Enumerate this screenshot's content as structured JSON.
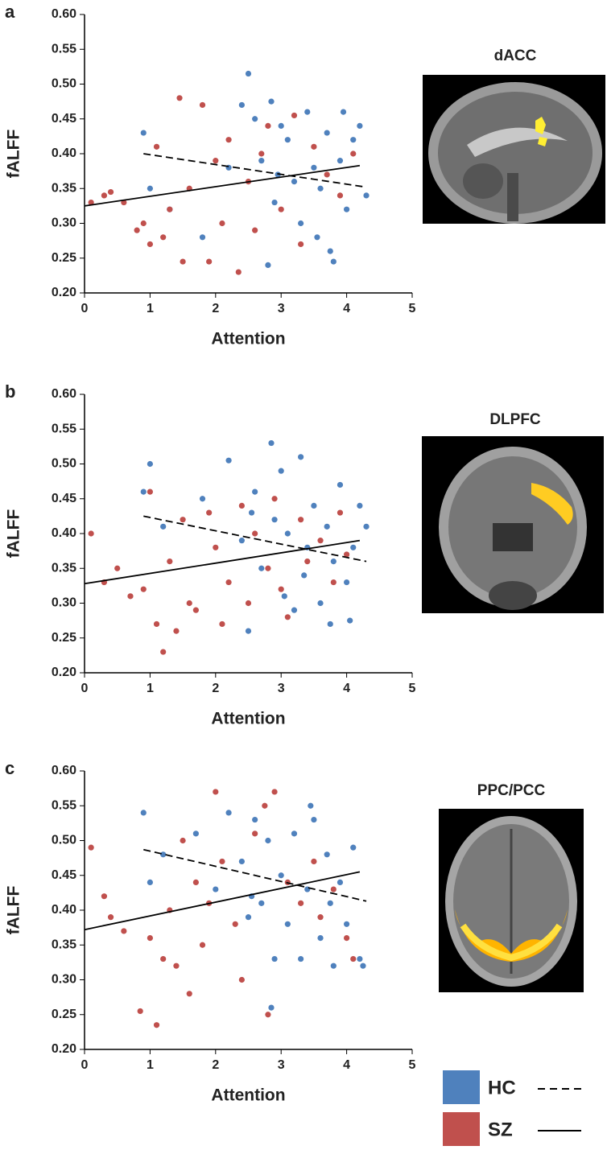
{
  "chart_data": [
    {
      "type": "scatter",
      "panel_label": "a",
      "title": "dACC",
      "xlabel": "Attention",
      "ylabel": "fALFF",
      "xlim": [
        0,
        5
      ],
      "ylim": [
        0.2,
        0.6
      ],
      "xticks": [
        0,
        1,
        2,
        3,
        4,
        5
      ],
      "yticks": [
        {
          "value": 0.2,
          "label": "0.20"
        },
        0.25,
        {
          "value": 0.3,
          "label": "0.30"
        },
        0.35,
        {
          "value": 0.4,
          "label": "0.40"
        },
        0.45,
        {
          "value": 0.5,
          "label": "0.50"
        },
        0.55,
        {
          "value": 0.6,
          "label": "0.60"
        }
      ],
      "series": [
        {
          "color": "#4f81bd",
          "line_style": "dashed",
          "x": [
            0.9,
            1.0,
            1.3,
            1.8,
            2.2,
            2.4,
            2.5,
            2.6,
            2.7,
            2.8,
            2.85,
            2.9,
            3.0,
            3.1,
            3.2,
            3.3,
            3.4,
            3.5,
            3.55,
            3.6,
            3.7,
            3.75,
            3.8,
            3.9,
            3.95,
            4.0,
            4.1,
            4.2,
            4.3,
            2.95
          ],
          "values": [
            0.43,
            0.35,
            0.32,
            0.28,
            0.38,
            0.47,
            0.515,
            0.45,
            0.39,
            0.24,
            0.475,
            0.33,
            0.44,
            0.42,
            0.36,
            0.3,
            0.46,
            0.38,
            0.28,
            0.35,
            0.43,
            0.26,
            0.245,
            0.39,
            0.46,
            0.32,
            0.42,
            0.44,
            0.34,
            0.37
          ],
          "fit_x": [
            0.9,
            4.3
          ],
          "fit_values": [
            0.4,
            0.352
          ]
        },
        {
          "color": "#c0504d",
          "line_style": "solid",
          "x": [
            0.1,
            0.3,
            0.4,
            0.6,
            0.8,
            0.9,
            1.0,
            1.1,
            1.2,
            1.3,
            1.45,
            1.5,
            1.6,
            1.8,
            1.9,
            2.0,
            2.1,
            2.2,
            2.35,
            2.5,
            2.6,
            2.7,
            2.8,
            3.0,
            3.2,
            3.3,
            3.5,
            3.7,
            3.9,
            4.1
          ],
          "values": [
            0.33,
            0.34,
            0.345,
            0.33,
            0.29,
            0.3,
            0.27,
            0.41,
            0.28,
            0.32,
            0.48,
            0.245,
            0.35,
            0.47,
            0.245,
            0.39,
            0.3,
            0.42,
            0.23,
            0.36,
            0.29,
            0.4,
            0.44,
            0.32,
            0.455,
            0.27,
            0.41,
            0.37,
            0.34,
            0.4
          ],
          "fit_x": [
            0,
            4.2
          ],
          "fit_values": [
            0.325,
            0.383
          ]
        }
      ]
    },
    {
      "type": "scatter",
      "panel_label": "b",
      "title": "DLPFC",
      "xlabel": "Attention",
      "ylabel": "fALFF",
      "xlim": [
        0,
        5
      ],
      "ylim": [
        0.2,
        0.6
      ],
      "xticks": [
        0,
        1,
        2,
        3,
        4,
        5
      ],
      "yticks": [
        {
          "value": 0.2,
          "label": "0.20"
        },
        0.25,
        {
          "value": 0.3,
          "label": "0.30"
        },
        0.35,
        {
          "value": 0.4,
          "label": "0.40"
        },
        0.45,
        {
          "value": 0.5,
          "label": "0.50"
        },
        0.55,
        {
          "value": 0.6,
          "label": "0.60"
        }
      ],
      "series": [
        {
          "color": "#4f81bd",
          "line_style": "dashed",
          "x": [
            0.9,
            1.0,
            1.2,
            1.8,
            2.2,
            2.4,
            2.5,
            2.6,
            2.7,
            2.85,
            2.9,
            3.0,
            3.05,
            3.1,
            3.2,
            3.3,
            3.4,
            3.5,
            3.6,
            3.7,
            3.75,
            3.8,
            3.9,
            4.0,
            4.05,
            4.1,
            4.2,
            4.3,
            2.55,
            3.35
          ],
          "values": [
            0.46,
            0.5,
            0.41,
            0.45,
            0.505,
            0.39,
            0.26,
            0.46,
            0.35,
            0.53,
            0.42,
            0.49,
            0.31,
            0.4,
            0.29,
            0.51,
            0.38,
            0.44,
            0.3,
            0.41,
            0.27,
            0.36,
            0.47,
            0.33,
            0.275,
            0.38,
            0.44,
            0.41,
            0.43,
            0.34
          ],
          "fit_x": [
            0.9,
            4.3
          ],
          "fit_values": [
            0.425,
            0.36
          ]
        },
        {
          "color": "#c0504d",
          "line_style": "solid",
          "x": [
            0.1,
            0.3,
            0.5,
            0.7,
            0.9,
            1.0,
            1.1,
            1.2,
            1.3,
            1.4,
            1.5,
            1.6,
            1.7,
            1.9,
            2.0,
            2.1,
            2.2,
            2.4,
            2.5,
            2.6,
            2.8,
            2.9,
            3.0,
            3.1,
            3.3,
            3.4,
            3.6,
            3.8,
            3.9,
            4.0
          ],
          "values": [
            0.4,
            0.33,
            0.35,
            0.31,
            0.32,
            0.46,
            0.27,
            0.23,
            0.36,
            0.26,
            0.42,
            0.3,
            0.29,
            0.43,
            0.38,
            0.27,
            0.33,
            0.44,
            0.3,
            0.4,
            0.35,
            0.45,
            0.32,
            0.28,
            0.42,
            0.36,
            0.39,
            0.33,
            0.43,
            0.37
          ],
          "fit_x": [
            0,
            4.2
          ],
          "fit_values": [
            0.328,
            0.39
          ]
        }
      ]
    },
    {
      "type": "scatter",
      "panel_label": "c",
      "title": "PPC/PCC",
      "xlabel": "Attention",
      "ylabel": "fALFF",
      "xlim": [
        0,
        5
      ],
      "ylim": [
        0.2,
        0.6
      ],
      "xticks": [
        0,
        1,
        2,
        3,
        4,
        5
      ],
      "yticks": [
        {
          "value": 0.2,
          "label": "0.20"
        },
        0.25,
        {
          "value": 0.3,
          "label": "0.30"
        },
        0.35,
        {
          "value": 0.4,
          "label": "0.40"
        },
        0.45,
        {
          "value": 0.5,
          "label": "0.50"
        },
        0.55,
        {
          "value": 0.6,
          "label": "0.60"
        }
      ],
      "legend": true,
      "series": [
        {
          "name": "HC",
          "color": "#4f81bd",
          "line_style": "dashed",
          "x": [
            0.9,
            1.0,
            1.2,
            1.7,
            2.0,
            2.2,
            2.4,
            2.5,
            2.6,
            2.7,
            2.8,
            2.85,
            2.9,
            3.0,
            3.1,
            3.2,
            3.3,
            3.4,
            3.5,
            3.6,
            3.7,
            3.75,
            3.8,
            3.9,
            4.0,
            4.1,
            4.2,
            4.25,
            2.55,
            3.45
          ],
          "values": [
            0.54,
            0.44,
            0.48,
            0.51,
            0.43,
            0.54,
            0.47,
            0.39,
            0.53,
            0.41,
            0.5,
            0.26,
            0.33,
            0.45,
            0.38,
            0.51,
            0.33,
            0.43,
            0.53,
            0.36,
            0.48,
            0.41,
            0.32,
            0.44,
            0.38,
            0.49,
            0.33,
            0.32,
            0.42,
            0.55
          ],
          "fit_x": [
            0.9,
            4.3
          ],
          "fit_values": [
            0.487,
            0.413
          ]
        },
        {
          "name": "SZ",
          "color": "#c0504d",
          "line_style": "solid",
          "x": [
            0.1,
            0.3,
            0.4,
            0.6,
            0.85,
            1.0,
            1.1,
            1.2,
            1.3,
            1.4,
            1.5,
            1.6,
            1.7,
            1.8,
            1.9,
            2.0,
            2.1,
            2.3,
            2.4,
            2.6,
            2.75,
            2.8,
            2.9,
            3.1,
            3.3,
            3.5,
            3.6,
            3.8,
            4.0,
            4.1
          ],
          "values": [
            0.49,
            0.42,
            0.39,
            0.37,
            0.255,
            0.36,
            0.235,
            0.33,
            0.4,
            0.32,
            0.5,
            0.28,
            0.44,
            0.35,
            0.41,
            0.57,
            0.47,
            0.38,
            0.3,
            0.51,
            0.55,
            0.25,
            0.57,
            0.44,
            0.41,
            0.47,
            0.39,
            0.43,
            0.36,
            0.33
          ],
          "fit_x": [
            0,
            4.2
          ],
          "fit_values": [
            0.372,
            0.455
          ]
        }
      ]
    }
  ]
}
